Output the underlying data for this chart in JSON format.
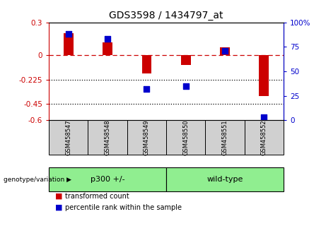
{
  "title": "GDS3598 / 1434797_at",
  "samples": [
    "GSM458547",
    "GSM458548",
    "GSM458549",
    "GSM458550",
    "GSM458551",
    "GSM458552"
  ],
  "bar_values": [
    0.2,
    0.12,
    -0.17,
    -0.09,
    0.07,
    -0.38
  ],
  "percentile_values": [
    88,
    83,
    32,
    35,
    71,
    3
  ],
  "bar_color": "#cc0000",
  "dot_color": "#0000cc",
  "ylim_left": [
    -0.6,
    0.3
  ],
  "ylim_right": [
    0,
    100
  ],
  "yticks_left": [
    0.3,
    0.0,
    -0.225,
    -0.45,
    -0.6
  ],
  "yticks_left_labels": [
    "0.3",
    "0",
    "-0.225",
    "-0.45",
    "-0.6"
  ],
  "yticks_right": [
    100,
    75,
    50,
    25,
    0
  ],
  "yticks_right_labels": [
    "100%",
    "75",
    "50",
    "25",
    "0"
  ],
  "dotted_lines": [
    -0.225,
    -0.45
  ],
  "legend_items": [
    "transformed count",
    "percentile rank within the sample"
  ],
  "bar_width": 0.25,
  "dot_size": 28,
  "group_spans": [
    [
      0,
      2,
      "p300 +/-"
    ],
    [
      3,
      5,
      "wild-type"
    ]
  ],
  "sample_box_color": "#d0d0d0",
  "group_box_color": "#90EE90"
}
